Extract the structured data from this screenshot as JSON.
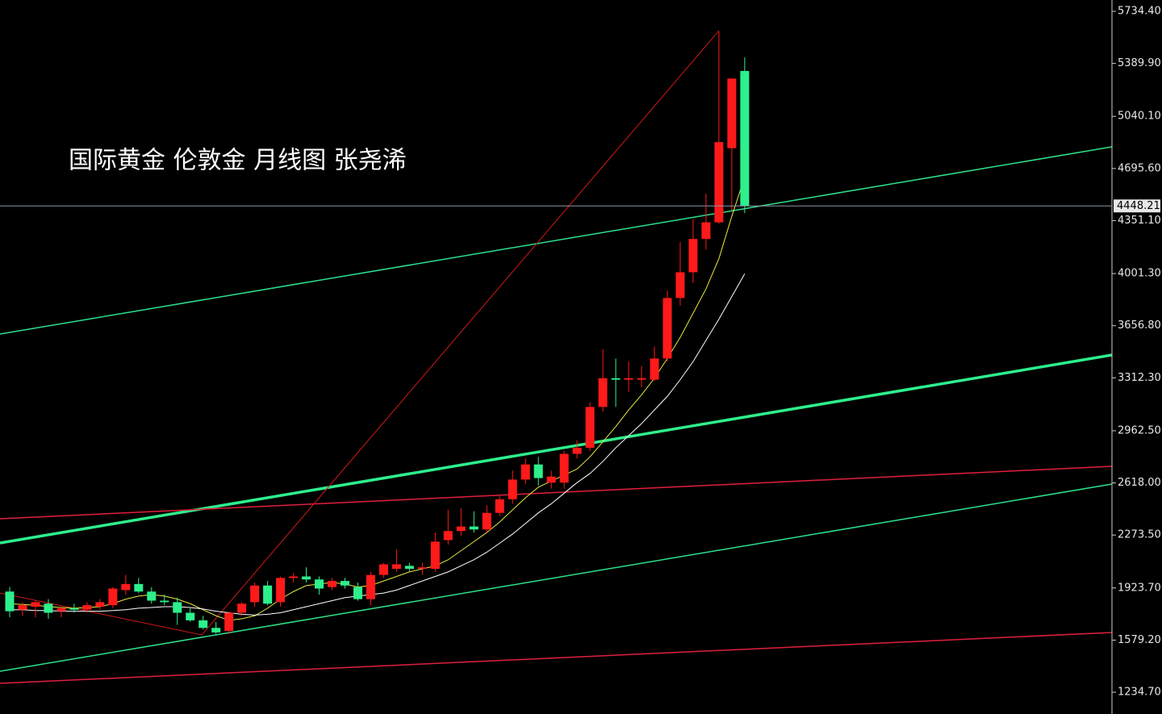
{
  "chart_data": {
    "type": "candlestick",
    "title": "国际黄金 伦敦金  月线图 张尧浠",
    "open": [
      1900,
      1780,
      1800,
      1820,
      1770,
      1790,
      1780,
      1800,
      1810,
      1910,
      1950,
      1900,
      1840,
      1830,
      1760,
      1710,
      1660,
      1640,
      1760,
      1830,
      1940,
      1830,
      1990,
      2000,
      1980,
      1930,
      1970,
      1930,
      1850,
      2010,
      2050,
      2070,
      2050,
      2050,
      2240,
      2300,
      2330,
      2310,
      2420,
      2510,
      2640,
      2740,
      2620,
      2620,
      2810,
      2850,
      3120,
      3310,
      3300,
      3300,
      3300,
      3440,
      3840,
      4010,
      4230,
      4340,
      4830,
      5340
    ],
    "high": [
      1930,
      1830,
      1840,
      1850,
      1800,
      1820,
      1830,
      1850,
      1930,
      2010,
      1990,
      1930,
      1880,
      1860,
      1790,
      1740,
      1700,
      1770,
      1830,
      1960,
      1970,
      2000,
      2020,
      2060,
      2000,
      1990,
      1990,
      1960,
      2030,
      2090,
      2180,
      2090,
      2090,
      2290,
      2440,
      2450,
      2430,
      2470,
      2530,
      2700,
      2780,
      2790,
      2700,
      2830,
      2900,
      3150,
      3500,
      3440,
      3420,
      3390,
      3520,
      3890,
      4210,
      4360,
      4530,
      5600,
      5290,
      5430
    ],
    "low": [
      1730,
      1740,
      1730,
      1720,
      1730,
      1760,
      1760,
      1780,
      1790,
      1880,
      1890,
      1820,
      1810,
      1680,
      1700,
      1650,
      1620,
      1620,
      1740,
      1800,
      1810,
      1800,
      1960,
      1960,
      1880,
      1910,
      1920,
      1840,
      1810,
      1990,
      2030,
      2030,
      2010,
      2030,
      2210,
      2270,
      2290,
      2290,
      2400,
      2480,
      2610,
      2600,
      2580,
      2580,
      2780,
      2830,
      3090,
      3120,
      3220,
      3250,
      3290,
      3420,
      3790,
      3940,
      4160,
      4330,
      4420,
      4400
    ],
    "close": [
      1770,
      1810,
      1830,
      1760,
      1790,
      1780,
      1810,
      1830,
      1920,
      1950,
      1900,
      1840,
      1830,
      1760,
      1710,
      1660,
      1630,
      1760,
      1820,
      1940,
      1820,
      1990,
      2000,
      1980,
      1920,
      1970,
      1940,
      1850,
      2010,
      2080,
      2080,
      2050,
      2060,
      2230,
      2300,
      2330,
      2310,
      2420,
      2510,
      2640,
      2740,
      2650,
      2660,
      2810,
      2850,
      3120,
      3310,
      3300,
      3310,
      3310,
      3440,
      3840,
      4010,
      4230,
      4340,
      4870,
      5290,
      4448.21
    ],
    "up_color": "#ff1a1a",
    "down_color": "#2df08c",
    "lines": [
      {
        "color": "#e8e840",
        "values": [
          1820,
          1815,
          1810,
          1800,
          1795,
          1790,
          1795,
          1800,
          1820,
          1850,
          1870,
          1880,
          1870,
          1850,
          1820,
          1780,
          1740,
          1710,
          1720,
          1740,
          1790,
          1850,
          1900,
          1940,
          1950,
          1960,
          1950,
          1930,
          1940,
          1970,
          2000,
          2030,
          2050,
          2070,
          2110,
          2170,
          2230,
          2290,
          2360,
          2440,
          2520,
          2590,
          2630,
          2670,
          2710,
          2790,
          2890,
          2990,
          3100,
          3200,
          3310,
          3440,
          3580,
          3740,
          3900,
          4100,
          4380,
          4640
        ]
      },
      {
        "color": "#ffffff",
        "values": [
          1780,
          1780,
          1775,
          1775,
          1770,
          1770,
          1770,
          1770,
          1775,
          1780,
          1790,
          1795,
          1800,
          1800,
          1795,
          1785,
          1770,
          1760,
          1750,
          1745,
          1750,
          1760,
          1780,
          1800,
          1820,
          1840,
          1860,
          1870,
          1880,
          1890,
          1910,
          1940,
          1970,
          2000,
          2030,
          2070,
          2110,
          2160,
          2220,
          2280,
          2350,
          2420,
          2480,
          2550,
          2620,
          2680,
          2760,
          2850,
          2930,
          3010,
          3100,
          3190,
          3300,
          3420,
          3560,
          3700,
          3850,
          4000
        ]
      }
    ],
    "last_price": 4448.21,
    "ylim": [
      1091,
      5809
    ],
    "yticks": [
      {
        "value": 5734.4,
        "label": "5734.40"
      },
      {
        "value": 5389.9,
        "label": "5389.90"
      },
      {
        "value": 5040.1,
        "label": "5040.10"
      },
      {
        "value": 4695.6,
        "label": "4695.60"
      },
      {
        "value": 4351.1,
        "label": "4351.10"
      },
      {
        "value": 4001.3,
        "label": "4001.30"
      },
      {
        "value": 3656.8,
        "label": "3656.80"
      },
      {
        "value": 3312.3,
        "label": "3312.30"
      },
      {
        "value": 2962.5,
        "label": "2962.50"
      },
      {
        "value": 2618,
        "label": "2618.00"
      },
      {
        "value": 2273.5,
        "label": "2273.50"
      },
      {
        "value": 1923.7,
        "label": "1923.70"
      },
      {
        "value": 1579.2,
        "label": "1579.20"
      },
      {
        "value": 1234.7,
        "label": "1234.70"
      }
    ]
  }
}
